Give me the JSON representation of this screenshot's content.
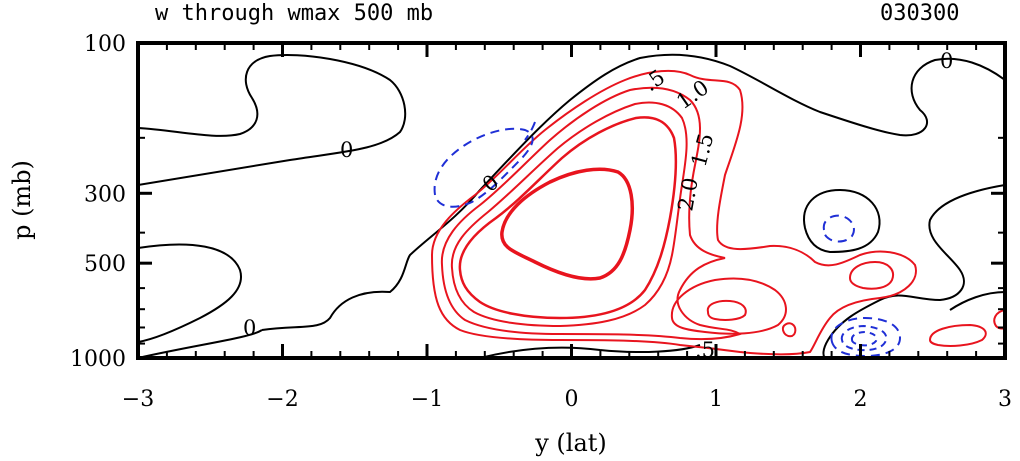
{
  "chart_data": {
    "type": "contour",
    "title": "w through wmax 500 mb",
    "subtitle": "030300",
    "xlabel": "y (lat)",
    "ylabel": "p (mb)",
    "xlim": [
      -3,
      3
    ],
    "ylim": [
      100,
      1000
    ],
    "x_ticks": [
      "−3",
      "−2",
      "−1",
      "0",
      "1",
      "2",
      "3"
    ],
    "y_ticks": [
      "100",
      "300",
      "500",
      "1000"
    ],
    "contour_labels": [
      "0",
      "0",
      "0",
      "0",
      ".5",
      "1.0",
      "1.5",
      "2.0",
      ".5"
    ],
    "colors": {
      "zero": "#000000",
      "positive": "#e8141e",
      "negative": "#1f2fd6"
    }
  }
}
